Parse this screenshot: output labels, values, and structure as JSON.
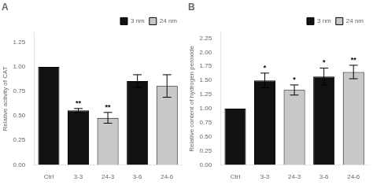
{
  "chart_data": [
    {
      "type": "bar",
      "title": "A",
      "y_label": "Relative activity of CAT",
      "categories": [
        "Ctrl",
        "3-3",
        "24-3",
        "3-6",
        "24-6"
      ],
      "series": [
        {
          "name": "3 nm",
          "color": "#111111",
          "values": [
            1.0,
            0.555,
            null,
            0.855,
            null
          ],
          "errors": [
            null,
            0.02,
            null,
            0.065,
            null
          ]
        },
        {
          "name": "24 nm",
          "color": "#c8c8c8",
          "values": [
            null,
            null,
            0.48,
            null,
            0.805
          ],
          "errors": [
            null,
            null,
            0.055,
            null,
            0.115
          ]
        }
      ],
      "ylim": [
        0,
        1.35
      ],
      "yticks": [
        {
          "value": 0,
          "label": "0.00"
        },
        0.25,
        {
          "value": 0.5,
          "label": "0.50"
        },
        0.75,
        {
          "value": 1,
          "label": "1.00"
        },
        1.25
      ],
      "annotations": [
        {
          "category": "3-3",
          "series": "3 nm",
          "text": "**"
        },
        {
          "category": "24-3",
          "series": "24 nm",
          "text": "**"
        }
      ],
      "legend": "upper right",
      "grid": false
    },
    {
      "type": "bar",
      "title": "B",
      "y_label": "Relative content of hydrogen peroxide",
      "categories": [
        "Ctrl",
        "3-3",
        "24-3",
        "3-6",
        "24-6"
      ],
      "series": [
        {
          "name": "3 nm",
          "color": "#111111",
          "values": [
            1.0,
            1.5,
            null,
            1.57,
            null
          ],
          "errors": [
            null,
            0.13,
            null,
            0.15,
            null
          ]
        },
        {
          "name": "24 nm",
          "color": "#c8c8c8",
          "values": [
            null,
            null,
            1.33,
            null,
            1.65
          ],
          "errors": [
            null,
            null,
            0.09,
            null,
            0.12
          ]
        }
      ],
      "ylim": [
        0,
        2.35
      ],
      "yticks": [
        {
          "value": 0,
          "label": "0.00"
        },
        0.25,
        {
          "value": 0.5,
          "label": "0.50"
        },
        0.75,
        {
          "value": 1,
          "label": "1.00"
        },
        1.25,
        {
          "value": 1.5,
          "label": "1.50"
        },
        1.75,
        {
          "value": 2,
          "label": "2.00"
        },
        2.25
      ],
      "annotations": [
        {
          "category": "3-3",
          "series": "3 nm",
          "text": "*"
        },
        {
          "category": "24-3",
          "series": "24 nm",
          "text": "*"
        },
        {
          "category": "3-6",
          "series": "3 nm",
          "text": "*"
        },
        {
          "category": "24-6",
          "series": "24 nm",
          "text": "**"
        }
      ],
      "legend": "upper right",
      "grid": false
    }
  ]
}
